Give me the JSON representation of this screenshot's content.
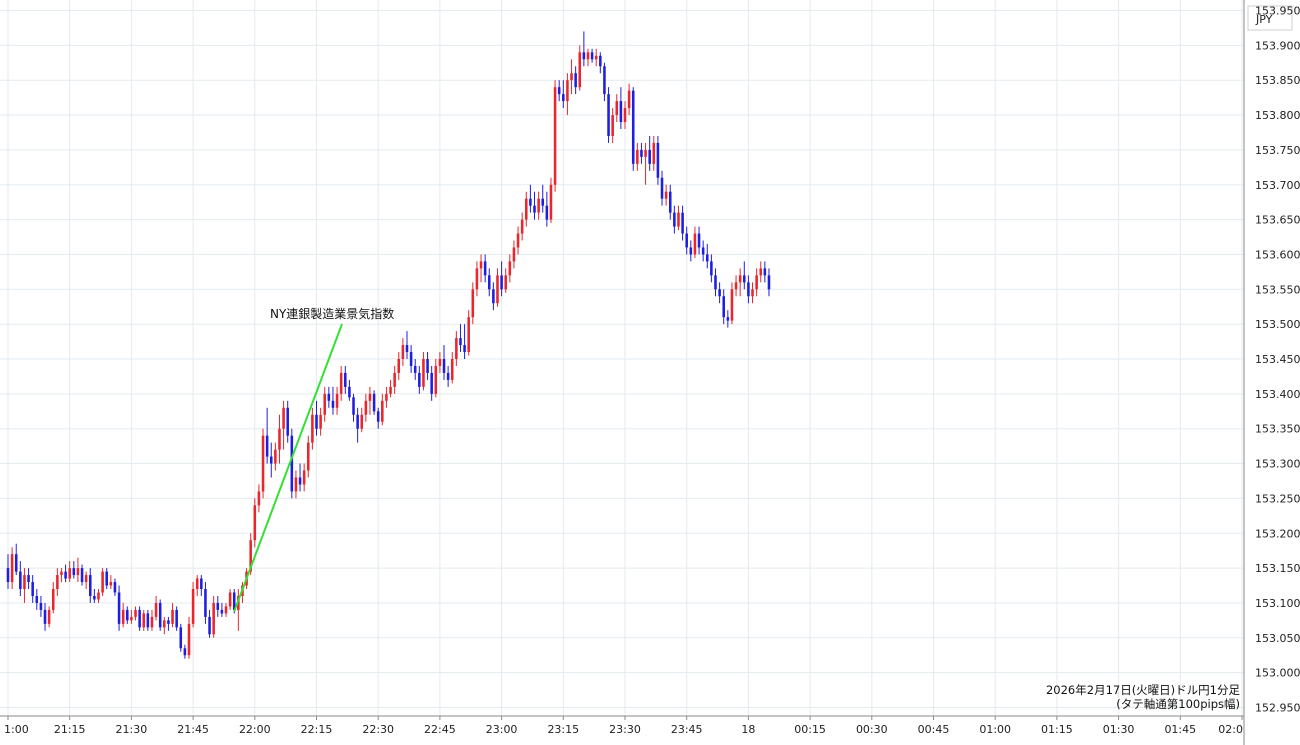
{
  "chart_data": {
    "type": "candlestick",
    "currency_label": "JPY",
    "annotation": "NY連銀製造業景気指数",
    "caption_line1": "2026年2月17日(火曜日)ドル円1分足",
    "caption_line2": "(タテ軸通第100pips幅)",
    "ylim": [
      152.94,
      153.96
    ],
    "y_ticks": [
      "153.950",
      "153.900",
      "153.850",
      "153.800",
      "153.750",
      "153.700",
      "153.650",
      "153.600",
      "153.550",
      "153.500",
      "153.450",
      "153.400",
      "153.350",
      "153.300",
      "153.250",
      "153.200",
      "153.150",
      "153.100",
      "153.050",
      "153.000",
      "152.950"
    ],
    "x_ticks": [
      "1:00",
      "21:15",
      "21:30",
      "21:45",
      "22:00",
      "22:15",
      "22:30",
      "22:45",
      "23:00",
      "23:15",
      "23:30",
      "23:45",
      "18",
      "00:15",
      "00:30",
      "00:45",
      "01:00",
      "01:15",
      "01:30",
      "01:45",
      "02:0"
    ],
    "grid": true,
    "up_color": "#e8262c",
    "down_color": "#1e1ee0",
    "annotation_line_color": "#33e033",
    "candles": [
      [
        153.15,
        153.17,
        153.12,
        153.13
      ],
      [
        153.13,
        153.18,
        153.12,
        153.17
      ],
      [
        153.17,
        153.185,
        153.14,
        153.145
      ],
      [
        153.145,
        153.16,
        153.11,
        153.12
      ],
      [
        153.12,
        153.15,
        153.1,
        153.14
      ],
      [
        153.14,
        153.15,
        153.12,
        153.13
      ],
      [
        153.13,
        153.14,
        153.1,
        153.11
      ],
      [
        153.11,
        153.12,
        153.09,
        153.1
      ],
      [
        153.1,
        153.11,
        153.08,
        153.09
      ],
      [
        153.09,
        153.1,
        153.06,
        153.07
      ],
      [
        153.07,
        153.095,
        153.065,
        153.09
      ],
      [
        153.09,
        153.13,
        153.085,
        153.12
      ],
      [
        153.12,
        153.15,
        153.11,
        153.14
      ],
      [
        153.14,
        153.15,
        153.13,
        153.145
      ],
      [
        153.145,
        153.155,
        153.13,
        153.135
      ],
      [
        153.135,
        153.16,
        153.13,
        153.15
      ],
      [
        153.15,
        153.16,
        153.135,
        153.14
      ],
      [
        153.14,
        153.165,
        153.13,
        153.15
      ],
      [
        153.15,
        153.155,
        153.125,
        153.13
      ],
      [
        153.13,
        153.145,
        153.12,
        153.14
      ],
      [
        153.14,
        153.15,
        153.1,
        153.11
      ],
      [
        153.11,
        153.12,
        153.1,
        153.105
      ],
      [
        153.105,
        153.12,
        153.1,
        153.115
      ],
      [
        153.115,
        153.15,
        153.11,
        153.145
      ],
      [
        153.145,
        153.15,
        153.12,
        153.125
      ],
      [
        153.125,
        153.14,
        153.12,
        153.13
      ],
      [
        153.13,
        153.135,
        153.11,
        153.115
      ],
      [
        153.115,
        153.125,
        153.06,
        153.07
      ],
      [
        153.07,
        153.1,
        153.065,
        153.09
      ],
      [
        153.09,
        153.095,
        153.07,
        153.075
      ],
      [
        153.075,
        153.09,
        153.07,
        153.08
      ],
      [
        153.08,
        153.095,
        153.075,
        153.09
      ],
      [
        153.09,
        153.095,
        153.06,
        153.065
      ],
      [
        153.065,
        153.09,
        153.06,
        153.085
      ],
      [
        153.085,
        153.09,
        153.06,
        153.065
      ],
      [
        153.065,
        153.09,
        153.06,
        153.08
      ],
      [
        153.08,
        153.11,
        153.075,
        153.1
      ],
      [
        153.1,
        153.105,
        153.06,
        153.065
      ],
      [
        153.065,
        153.08,
        153.055,
        153.075
      ],
      [
        153.075,
        153.08,
        153.06,
        153.07
      ],
      [
        153.07,
        153.1,
        153.065,
        153.09
      ],
      [
        153.09,
        153.095,
        153.06,
        153.065
      ],
      [
        153.065,
        153.07,
        153.03,
        153.035
      ],
      [
        153.035,
        153.04,
        153.02,
        153.025
      ],
      [
        153.025,
        153.08,
        153.02,
        153.07
      ],
      [
        153.07,
        153.13,
        153.065,
        153.12
      ],
      [
        153.12,
        153.14,
        153.11,
        153.135
      ],
      [
        153.135,
        153.14,
        153.11,
        153.12
      ],
      [
        153.12,
        153.13,
        153.07,
        153.08
      ],
      [
        153.08,
        153.09,
        153.05,
        153.055
      ],
      [
        153.055,
        153.11,
        153.05,
        153.1
      ],
      [
        153.1,
        153.11,
        153.08,
        153.09
      ],
      [
        153.09,
        153.1,
        153.08,
        153.085
      ],
      [
        153.085,
        153.1,
        153.08,
        153.095
      ],
      [
        153.095,
        153.12,
        153.09,
        153.115
      ],
      [
        153.115,
        153.12,
        153.085,
        153.09
      ],
      [
        153.09,
        153.12,
        153.06,
        153.11
      ],
      [
        153.11,
        153.13,
        153.1,
        153.125
      ],
      [
        153.125,
        153.15,
        153.12,
        153.145
      ],
      [
        153.145,
        153.2,
        153.14,
        153.19
      ],
      [
        153.19,
        153.25,
        153.18,
        153.24
      ],
      [
        153.24,
        153.27,
        153.23,
        153.26
      ],
      [
        153.26,
        153.35,
        153.25,
        153.34
      ],
      [
        153.34,
        153.38,
        153.3,
        153.31
      ],
      [
        153.31,
        153.33,
        153.28,
        153.3
      ],
      [
        153.3,
        153.33,
        153.29,
        153.32
      ],
      [
        153.32,
        153.37,
        153.3,
        153.35
      ],
      [
        153.35,
        153.39,
        153.32,
        153.38
      ],
      [
        153.38,
        153.39,
        153.33,
        153.34
      ],
      [
        153.34,
        153.35,
        153.25,
        153.26
      ],
      [
        153.26,
        153.29,
        153.25,
        153.28
      ],
      [
        153.28,
        153.3,
        153.26,
        153.27
      ],
      [
        153.27,
        153.3,
        153.26,
        153.29
      ],
      [
        153.29,
        153.34,
        153.28,
        153.33
      ],
      [
        153.33,
        153.38,
        153.32,
        153.37
      ],
      [
        153.37,
        153.39,
        153.34,
        153.35
      ],
      [
        153.35,
        153.38,
        153.34,
        153.37
      ],
      [
        153.37,
        153.41,
        153.36,
        153.4
      ],
      [
        153.4,
        153.41,
        153.38,
        153.39
      ],
      [
        153.39,
        153.41,
        153.37,
        153.38
      ],
      [
        153.38,
        153.41,
        153.37,
        153.4
      ],
      [
        153.4,
        153.44,
        153.39,
        153.43
      ],
      [
        153.43,
        153.44,
        153.4,
        153.41
      ],
      [
        153.41,
        153.42,
        153.39,
        153.395
      ],
      [
        153.395,
        153.4,
        153.36,
        153.37
      ],
      [
        153.37,
        153.38,
        153.33,
        153.35
      ],
      [
        153.35,
        153.38,
        153.345,
        153.37
      ],
      [
        153.37,
        153.4,
        153.36,
        153.39
      ],
      [
        153.39,
        153.41,
        153.37,
        153.4
      ],
      [
        153.4,
        153.405,
        153.37,
        153.375
      ],
      [
        153.375,
        153.38,
        153.35,
        153.36
      ],
      [
        153.36,
        153.4,
        153.355,
        153.39
      ],
      [
        153.39,
        153.41,
        153.38,
        153.4
      ],
      [
        153.4,
        153.42,
        153.395,
        153.41
      ],
      [
        153.41,
        153.44,
        153.4,
        153.43
      ],
      [
        153.43,
        153.46,
        153.42,
        153.45
      ],
      [
        153.45,
        153.48,
        153.44,
        153.47
      ],
      [
        153.47,
        153.49,
        153.45,
        153.46
      ],
      [
        153.46,
        153.47,
        153.43,
        153.44
      ],
      [
        153.44,
        153.45,
        153.42,
        153.43
      ],
      [
        153.43,
        153.44,
        153.4,
        153.41
      ],
      [
        153.41,
        153.46,
        153.405,
        153.45
      ],
      [
        153.45,
        153.46,
        153.42,
        153.43
      ],
      [
        153.43,
        153.44,
        153.39,
        153.4
      ],
      [
        153.4,
        153.45,
        153.395,
        153.44
      ],
      [
        153.44,
        153.46,
        153.43,
        153.45
      ],
      [
        153.45,
        153.47,
        153.42,
        153.43
      ],
      [
        153.43,
        153.44,
        153.41,
        153.42
      ],
      [
        153.42,
        153.46,
        153.415,
        153.45
      ],
      [
        153.45,
        153.49,
        153.44,
        153.48
      ],
      [
        153.48,
        153.5,
        153.46,
        153.47
      ],
      [
        153.47,
        153.5,
        153.45,
        153.46
      ],
      [
        153.46,
        153.52,
        153.455,
        153.51
      ],
      [
        153.51,
        153.56,
        153.5,
        153.55
      ],
      [
        153.55,
        153.59,
        153.54,
        153.58
      ],
      [
        153.58,
        153.6,
        153.56,
        153.59
      ],
      [
        153.59,
        153.6,
        153.56,
        153.57
      ],
      [
        153.57,
        153.58,
        153.54,
        153.55
      ],
      [
        153.55,
        153.56,
        153.52,
        153.53
      ],
      [
        153.53,
        153.58,
        153.525,
        153.57
      ],
      [
        153.57,
        153.59,
        153.54,
        153.55
      ],
      [
        153.55,
        153.58,
        153.545,
        153.57
      ],
      [
        153.57,
        153.6,
        153.56,
        153.59
      ],
      [
        153.59,
        153.62,
        153.58,
        153.61
      ],
      [
        153.61,
        153.64,
        153.6,
        153.63
      ],
      [
        153.63,
        153.66,
        153.62,
        153.65
      ],
      [
        153.65,
        153.69,
        153.64,
        153.68
      ],
      [
        153.68,
        153.7,
        153.66,
        153.67
      ],
      [
        153.67,
        153.69,
        153.65,
        153.66
      ],
      [
        153.66,
        153.69,
        153.65,
        153.68
      ],
      [
        153.68,
        153.7,
        153.66,
        153.67
      ],
      [
        153.67,
        153.69,
        153.64,
        153.65
      ],
      [
        153.65,
        153.71,
        153.645,
        153.7
      ],
      [
        153.7,
        153.85,
        153.69,
        153.84
      ],
      [
        153.84,
        153.85,
        153.82,
        153.83
      ],
      [
        153.83,
        153.85,
        153.81,
        153.82
      ],
      [
        153.82,
        153.86,
        153.8,
        153.85
      ],
      [
        153.85,
        153.88,
        153.83,
        153.86
      ],
      [
        153.86,
        153.87,
        153.83,
        153.84
      ],
      [
        153.84,
        153.9,
        153.835,
        153.89
      ],
      [
        153.89,
        153.92,
        153.87,
        153.88
      ],
      [
        153.88,
        153.895,
        153.87,
        153.89
      ],
      [
        153.89,
        153.895,
        153.875,
        153.88
      ],
      [
        153.88,
        153.895,
        153.87,
        153.885
      ],
      [
        153.885,
        153.89,
        153.86,
        153.87
      ],
      [
        153.87,
        153.875,
        153.82,
        153.83
      ],
      [
        153.83,
        153.84,
        153.76,
        153.77
      ],
      [
        153.77,
        153.81,
        153.76,
        153.8
      ],
      [
        153.8,
        153.83,
        153.79,
        153.82
      ],
      [
        153.82,
        153.84,
        153.78,
        153.79
      ],
      [
        153.79,
        153.82,
        153.78,
        153.81
      ],
      [
        153.81,
        153.845,
        153.8,
        153.835
      ],
      [
        153.835,
        153.84,
        153.72,
        153.73
      ],
      [
        153.73,
        153.76,
        153.72,
        153.75
      ],
      [
        153.75,
        153.76,
        153.73,
        153.74
      ],
      [
        153.74,
        153.76,
        153.7,
        153.75
      ],
      [
        153.75,
        153.77,
        153.72,
        153.73
      ],
      [
        153.73,
        153.77,
        153.72,
        153.76
      ],
      [
        153.76,
        153.77,
        153.7,
        153.71
      ],
      [
        153.71,
        153.72,
        153.67,
        153.68
      ],
      [
        153.68,
        153.7,
        153.67,
        153.69
      ],
      [
        153.69,
        153.7,
        153.65,
        153.66
      ],
      [
        153.66,
        153.67,
        153.63,
        153.64
      ],
      [
        153.64,
        153.67,
        153.635,
        153.66
      ],
      [
        153.66,
        153.67,
        153.62,
        153.63
      ],
      [
        153.63,
        153.64,
        153.6,
        153.61
      ],
      [
        153.61,
        153.62,
        153.59,
        153.6
      ],
      [
        153.6,
        153.64,
        153.595,
        153.63
      ],
      [
        153.63,
        153.64,
        153.6,
        153.61
      ],
      [
        153.61,
        153.62,
        153.59,
        153.6
      ],
      [
        153.6,
        153.615,
        153.58,
        153.59
      ],
      [
        153.59,
        153.6,
        153.56,
        153.57
      ],
      [
        153.57,
        153.58,
        153.54,
        153.55
      ],
      [
        153.55,
        153.56,
        153.53,
        153.54
      ],
      [
        153.54,
        153.55,
        153.5,
        153.51
      ],
      [
        153.51,
        153.52,
        153.495,
        153.505
      ],
      [
        153.505,
        153.56,
        153.5,
        153.55
      ],
      [
        153.55,
        153.57,
        153.54,
        153.56
      ],
      [
        153.56,
        153.58,
        153.54,
        153.57
      ],
      [
        153.57,
        153.59,
        153.55,
        153.56
      ],
      [
        153.56,
        153.57,
        153.53,
        153.54
      ],
      [
        153.54,
        153.56,
        153.53,
        153.55
      ],
      [
        153.55,
        153.58,
        153.54,
        153.57
      ],
      [
        153.57,
        153.59,
        153.56,
        153.58
      ],
      [
        153.58,
        153.59,
        153.56,
        153.57
      ],
      [
        153.57,
        153.58,
        153.54,
        153.55
      ]
    ]
  }
}
